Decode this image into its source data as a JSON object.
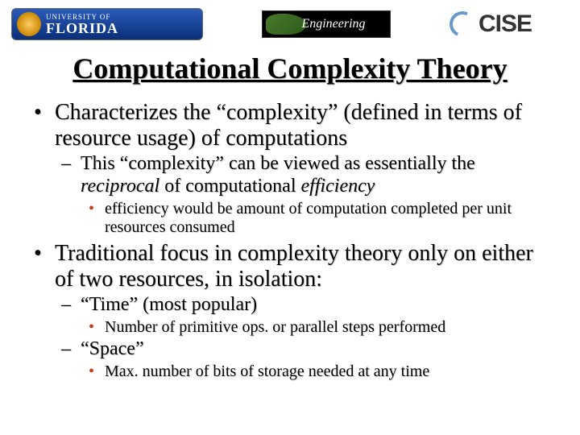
{
  "header": {
    "uf_university": "UNIVERSITY OF",
    "uf_florida": "FLORIDA",
    "engineering": "Engineering",
    "cise": "CISE"
  },
  "title": "Computational Complexity Theory",
  "bullets": {
    "b1": "Characterizes the “complexity” (defined in terms of resource usage) of computations",
    "b1_1a": "This “complexity” can be viewed as essentially the ",
    "b1_1b": "reciprocal",
    "b1_1c": " of computational ",
    "b1_1d": "efficiency",
    "b1_1_1": "efficiency would be amount of computation completed per unit resources consumed",
    "b2": "Traditional focus in complexity theory only on either of two resources, in isolation:",
    "b2_1": "“Time” (most popular)",
    "b2_1_1": "Number of primitive ops. or parallel steps performed",
    "b2_2": "“Space”",
    "b2_2_1": "Max. number of bits of storage needed at any time"
  }
}
